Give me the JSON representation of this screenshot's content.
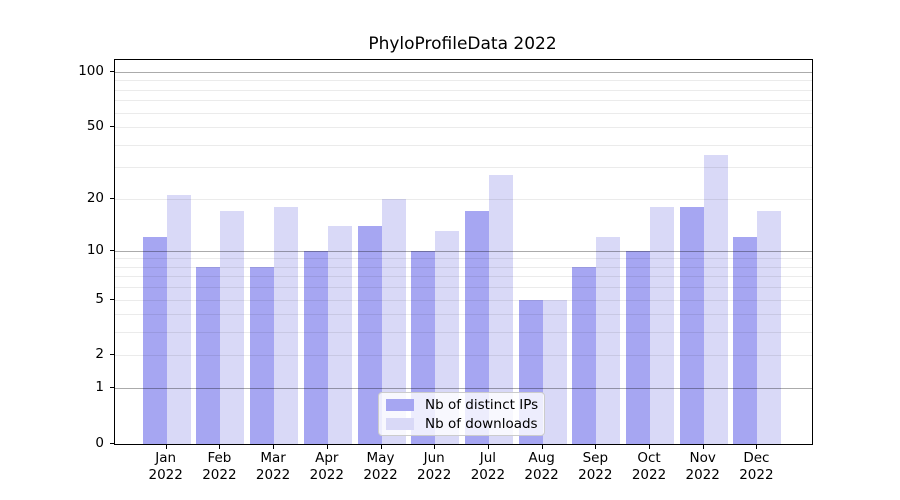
{
  "chart_data": {
    "type": "bar",
    "title": "PhyloProfileData 2022",
    "categories": [
      {
        "month": "Jan",
        "year": "2022"
      },
      {
        "month": "Feb",
        "year": "2022"
      },
      {
        "month": "Mar",
        "year": "2022"
      },
      {
        "month": "Apr",
        "year": "2022"
      },
      {
        "month": "May",
        "year": "2022"
      },
      {
        "month": "Jun",
        "year": "2022"
      },
      {
        "month": "Jul",
        "year": "2022"
      },
      {
        "month": "Aug",
        "year": "2022"
      },
      {
        "month": "Sep",
        "year": "2022"
      },
      {
        "month": "Oct",
        "year": "2022"
      },
      {
        "month": "Nov",
        "year": "2022"
      },
      {
        "month": "Dec",
        "year": "2022"
      }
    ],
    "series": [
      {
        "name": "Nb of distinct IPs",
        "color": "#a6a6f2",
        "values": [
          12,
          8,
          8,
          10,
          14,
          10,
          17,
          5,
          8,
          10,
          18,
          12
        ]
      },
      {
        "name": "Nb of downloads",
        "color": "#d9d9f7",
        "values": [
          21,
          17,
          18,
          14,
          20,
          13,
          27,
          5,
          12,
          18,
          35,
          17
        ]
      }
    ],
    "y_axis": {
      "scale": "log1p",
      "tick_values": [
        0,
        1,
        2,
        5,
        10,
        20,
        50,
        100
      ],
      "major_gridlines": [
        1,
        10,
        100
      ],
      "minor_gridlines": [
        2,
        3,
        4,
        5,
        6,
        7,
        8,
        9,
        20,
        30,
        40,
        50,
        60,
        70,
        80,
        90
      ],
      "top_value_displayed": 116
    },
    "legend": {
      "position": "inside-bottom-center"
    },
    "grid": true
  }
}
